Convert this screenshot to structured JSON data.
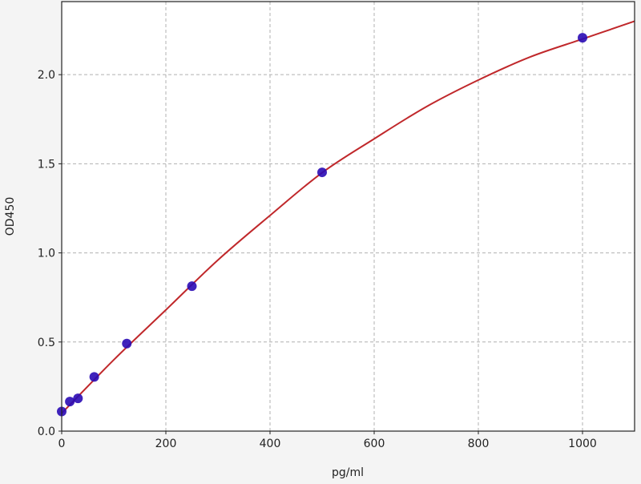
{
  "chart_data": {
    "type": "scatter",
    "title": "",
    "xlabel": "pg/ml",
    "ylabel": "OD450",
    "xlim": [
      0,
      1100
    ],
    "ylim": [
      0,
      2.41
    ],
    "grid": true,
    "xticks": [
      0,
      200,
      400,
      600,
      800,
      1000
    ],
    "xtick_labels": [
      "0",
      "200",
      "400",
      "600",
      "800",
      "1000"
    ],
    "yticks": [
      0,
      0.5,
      1.0,
      1.5,
      2.0
    ],
    "ytick_labels": [
      "0.0",
      "0.5",
      "1.0",
      "1.5",
      "2.0"
    ],
    "points": {
      "x": [
        0,
        15.6,
        31.25,
        62.5,
        125,
        250,
        500,
        1000
      ],
      "y": [
        0.11,
        0.166,
        0.184,
        0.304,
        0.491,
        0.813,
        1.452,
        2.207
      ],
      "color": "#2a0bb5"
    },
    "fit_curve": {
      "x": [
        0,
        100,
        200,
        300,
        400,
        500,
        600,
        700,
        800,
        900,
        1000,
        1100
      ],
      "y": [
        0.1,
        0.4,
        0.68,
        0.96,
        1.21,
        1.45,
        1.64,
        1.82,
        1.97,
        2.1,
        2.2,
        2.3
      ],
      "color": "#c0282b"
    }
  }
}
